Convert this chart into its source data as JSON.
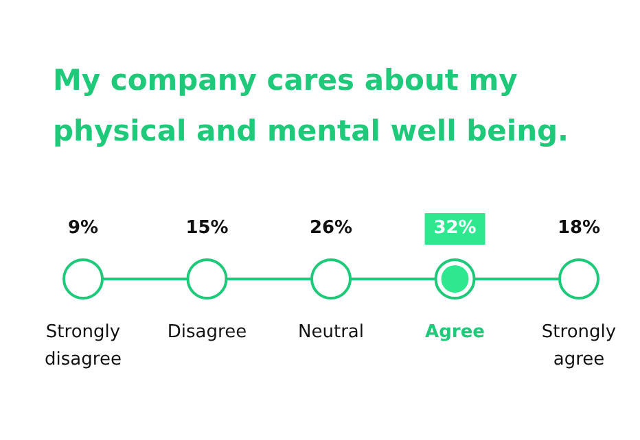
{
  "chart_data": {
    "type": "other",
    "title": "My company cares about my physical and mental well being.",
    "categories": [
      "Strongly disagree",
      "Disagree",
      "Neutral",
      "Agree",
      "Strongly agree"
    ],
    "values": [
      9,
      15,
      26,
      32,
      18
    ],
    "value_labels": [
      "9%",
      "15%",
      "26%",
      "32%",
      "18%"
    ],
    "color": "#1ec97a",
    "colors": [
      "#ffffff",
      "#ffffff",
      "#ffffff",
      "#2ee88f",
      "#ffffff"
    ]
  }
}
